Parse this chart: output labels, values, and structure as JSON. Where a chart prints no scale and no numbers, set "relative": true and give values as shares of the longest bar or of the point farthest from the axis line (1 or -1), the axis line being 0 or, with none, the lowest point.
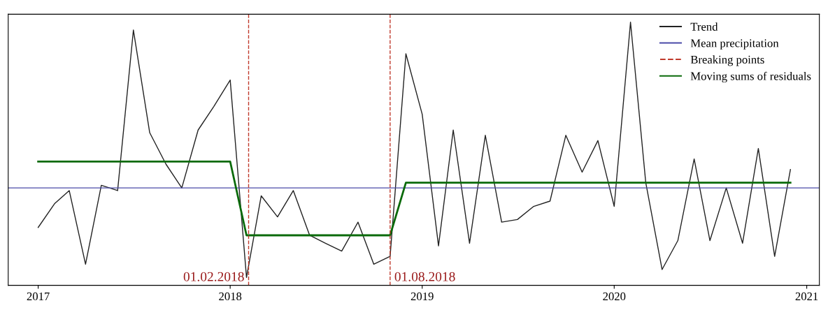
{
  "chart_data": {
    "type": "line",
    "relative": true,
    "xlim": [
      "2016-11-05",
      "2021-01-25"
    ],
    "xticks": [
      "2017",
      "2018",
      "2019",
      "2020",
      "2021"
    ],
    "tick_labels": "x",
    "grid": false,
    "legend": "top right",
    "line_style": "solid",
    "marker": "none",
    "series": [
      {
        "name": "Trend",
        "color": "#222222",
        "x": [
          "2017-01",
          "2017-02",
          "2017-03",
          "2017-04",
          "2017-05",
          "2017-06",
          "2017-07",
          "2017-08",
          "2017-09",
          "2017-10",
          "2017-11",
          "2017-12",
          "2018-01",
          "2018-02",
          "2018-03",
          "2018-04",
          "2018-05",
          "2018-06",
          "2018-07",
          "2018-08",
          "2018-09",
          "2018-10",
          "2018-11",
          "2018-12",
          "2019-01",
          "2019-02",
          "2019-03",
          "2019-04",
          "2019-05",
          "2019-06",
          "2019-07",
          "2019-08",
          "2019-09",
          "2019-10",
          "2019-11",
          "2019-12",
          "2020-01",
          "2020-02",
          "2020-03",
          "2020-04",
          "2020-05",
          "2020-06",
          "2020-07",
          "2020-08",
          "2020-09",
          "2020-10",
          "2020-11",
          "2020-12"
        ],
        "values": [
          0.22,
          0.31,
          0.36,
          0.08,
          0.38,
          0.36,
          0.97,
          0.58,
          0.46,
          0.37,
          0.59,
          0.68,
          0.78,
          0.03,
          0.34,
          0.26,
          0.36,
          0.19,
          0.16,
          0.13,
          0.24,
          0.08,
          0.11,
          0.88,
          0.65,
          0.15,
          0.59,
          0.16,
          0.57,
          0.24,
          0.25,
          0.3,
          0.32,
          0.57,
          0.43,
          0.55,
          0.3,
          1.0,
          0.39,
          0.06,
          0.17,
          0.48,
          0.17,
          0.37,
          0.16,
          0.52,
          0.11,
          0.44
        ]
      },
      {
        "name": "Mean precipitation",
        "color": "#4a4aa8",
        "x": [
          "2016-11-05",
          "2021-01-25"
        ],
        "values": [
          0.37,
          0.37
        ]
      },
      {
        "name": "Moving sums of residuals",
        "color": "#0a6a0a",
        "x": [
          "2017-01",
          "2018-01",
          "2018-02",
          "2018-11",
          "2018-12",
          "2020-12"
        ],
        "values": [
          0.47,
          0.47,
          0.19,
          0.19,
          0.39,
          0.39
        ]
      }
    ],
    "ref_lines": [
      {
        "axis": "x",
        "value": "2018-02-05",
        "label": "01.02.2018",
        "color": "#c0392b",
        "line_style": "dashed"
      },
      {
        "axis": "x",
        "value": "2018-11-01",
        "label": "01.08.2018",
        "color": "#c0392b",
        "line_style": "dashed"
      }
    ],
    "annotations": [
      "Breaking points"
    ]
  }
}
